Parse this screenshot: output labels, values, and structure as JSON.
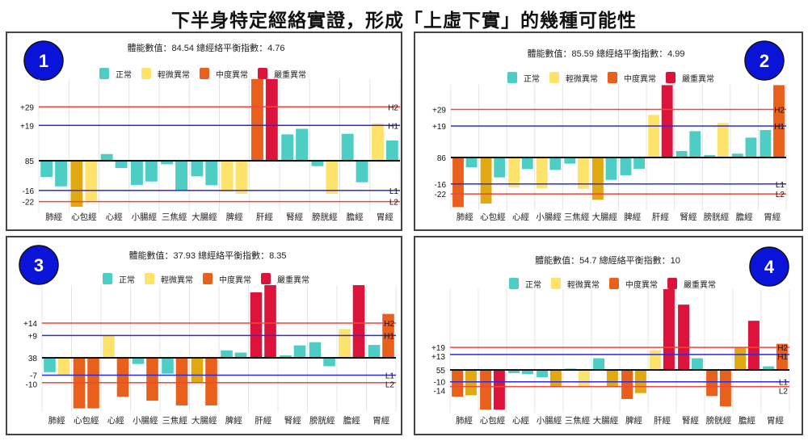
{
  "title": "下半身特定經絡實證，形成「上虛下實」的幾種可能性",
  "legend": [
    {
      "key": "normal",
      "label": "正常"
    },
    {
      "key": "mild",
      "label": "輕微異常"
    },
    {
      "key": "moderate",
      "label": "中度異常"
    },
    {
      "key": "severe",
      "label": "嚴重異常"
    }
  ],
  "colors": {
    "normal": "#4ecdc4",
    "mild": "#fde36b",
    "mild2": "#e0a912",
    "moderate": "#e8601c",
    "severe": "#dc143c",
    "badge": "#0a14d8",
    "high2": "#f0463c",
    "high1": "#2b2bd8",
    "baseline": "#111111"
  },
  "chart_data": [
    {
      "type": "bar",
      "badge": "1",
      "info": "體能數值：84.54 總經絡平衡指數：4.76",
      "baseline_label": "85",
      "ylim": [
        -26,
        44
      ],
      "lines": [
        {
          "label": "+29",
          "tag": "H2",
          "value": 29,
          "kind": "high2"
        },
        {
          "label": "+19",
          "tag": "H1",
          "value": 19,
          "kind": "high1"
        },
        {
          "label": "-16",
          "tag": "L1",
          "value": -16,
          "kind": "high1"
        },
        {
          "label": "-22",
          "tag": "L2",
          "value": -22,
          "kind": "high2"
        }
      ],
      "categories": [
        "肺經",
        "心包經",
        "心經",
        "小腸經",
        "三焦經",
        "大腸經",
        "脾經",
        "肝經",
        "腎經",
        "膀胱經",
        "膽經",
        "胃經"
      ],
      "values": [
        [
          -8.7,
          -13.8
        ],
        [
          -24.8,
          -21.6
        ],
        [
          3.6,
          -3.9
        ],
        [
          -13,
          -11.2
        ],
        [
          -1.9,
          -15.8
        ],
        [
          -8.4,
          -13.2
        ],
        [
          -16.8,
          -17.8
        ],
        [
          44,
          44
        ],
        [
          14.2,
          17.2
        ],
        [
          -2.9,
          -17.8
        ],
        [
          14.5,
          -11.6
        ],
        [
          20.1,
          10.9
        ]
      ],
      "status": [
        [
          "normal",
          "normal"
        ],
        [
          "mild2",
          "mild"
        ],
        [
          "normal",
          "normal"
        ],
        [
          "normal",
          "normal"
        ],
        [
          "normal",
          "normal"
        ],
        [
          "normal",
          "normal"
        ],
        [
          "mild",
          "mild"
        ],
        [
          "moderate",
          "severe"
        ],
        [
          "normal",
          "normal"
        ],
        [
          "normal",
          "mild"
        ],
        [
          "normal",
          "normal"
        ],
        [
          "mild",
          "normal"
        ]
      ]
    },
    {
      "type": "bar",
      "badge": "2",
      "info": "體能數值：85.59 總經絡平衡指數：4.99",
      "baseline_label": "86",
      "ylim": [
        -30,
        44
      ],
      "lines": [
        {
          "label": "+29",
          "tag": "H2",
          "value": 29,
          "kind": "high2"
        },
        {
          "label": "+19",
          "tag": "H1",
          "value": 19,
          "kind": "high1"
        },
        {
          "label": "-16",
          "tag": "L1",
          "value": -16,
          "kind": "high1"
        },
        {
          "label": "-22",
          "tag": "L2",
          "value": -22,
          "kind": "high2"
        }
      ],
      "categories": [
        "肺經",
        "心包經",
        "心經",
        "小腸經",
        "三焦經",
        "大腸經",
        "脾經",
        "肝經",
        "腎經",
        "膀胱經",
        "膽經",
        "胃經"
      ],
      "values": [
        [
          -30,
          -5.9
        ],
        [
          -27.8,
          -12
        ],
        [
          -18,
          -7
        ],
        [
          -18.5,
          -7.5
        ],
        [
          -3.7,
          -18.9
        ],
        [
          -25.5,
          -13.5
        ],
        [
          -10.7,
          -6.8
        ],
        [
          25.7,
          43.7
        ],
        [
          3.9,
          15.9
        ],
        [
          1.5,
          20.8
        ],
        [
          2.3,
          12
        ],
        [
          16.6,
          43.7
        ]
      ],
      "status": [
        [
          "moderate",
          "normal"
        ],
        [
          "mild2",
          "normal"
        ],
        [
          "mild",
          "normal"
        ],
        [
          "mild",
          "normal"
        ],
        [
          "normal",
          "mild"
        ],
        [
          "mild2",
          "normal"
        ],
        [
          "normal",
          "normal"
        ],
        [
          "mild",
          "severe"
        ],
        [
          "normal",
          "normal"
        ],
        [
          "normal",
          "mild"
        ],
        [
          "normal",
          "normal"
        ],
        [
          "normal",
          "moderate"
        ]
      ]
    },
    {
      "type": "bar",
      "badge": "3",
      "info": "體能數值：37.93 總經絡平衡指數：8.35",
      "baseline_label": "38",
      "ylim": [
        -20.4,
        29.3
      ],
      "lines": [
        {
          "label": "+14",
          "tag": "H2",
          "value": 14,
          "kind": "high2"
        },
        {
          "label": "+9",
          "tag": "H1",
          "value": 9,
          "kind": "high1"
        },
        {
          "label": "-7",
          "tag": "L1",
          "value": -7,
          "kind": "high1"
        },
        {
          "label": "-10",
          "tag": "L2",
          "value": -10,
          "kind": "high2"
        }
      ],
      "categories": [
        "肺經",
        "心包經",
        "心經",
        "小腸經",
        "三焦經",
        "大腸經",
        "脾經",
        "肝經",
        "腎經",
        "膀胱經",
        "膽經",
        "胃經"
      ],
      "values": [
        [
          -5.8,
          -7
        ],
        [
          -20.4,
          -20.4
        ],
        [
          9.1,
          -15.7
        ],
        [
          -2.5,
          -17.3
        ],
        [
          -6.4,
          -19.2
        ],
        [
          -10.1,
          -19.2
        ],
        [
          3,
          2.1
        ],
        [
          26.4,
          29.3
        ],
        [
          1,
          5
        ],
        [
          6.3,
          -3.4
        ],
        [
          11.6,
          29.3
        ],
        [
          5.2,
          17.7
        ]
      ],
      "status": [
        [
          "normal",
          "mild"
        ],
        [
          "moderate",
          "moderate"
        ],
        [
          "mild",
          "moderate"
        ],
        [
          "normal",
          "moderate"
        ],
        [
          "normal",
          "moderate"
        ],
        [
          "mild2",
          "moderate"
        ],
        [
          "normal",
          "normal"
        ],
        [
          "severe",
          "severe"
        ],
        [
          "normal",
          "normal"
        ],
        [
          "normal",
          "normal"
        ],
        [
          "mild",
          "severe"
        ],
        [
          "normal",
          "moderate"
        ]
      ]
    },
    {
      "type": "bar",
      "badge": "4",
      "info": "體能數值：54.7 總經絡平衡指數：10",
      "baseline_label": "55",
      "ylim": [
        -33.4,
        68
      ],
      "lines": [
        {
          "label": "+19",
          "tag": "H2",
          "value": 19,
          "kind": "high2"
        },
        {
          "label": "+13",
          "tag": "H1",
          "value": 13,
          "kind": "high1"
        },
        {
          "label": "-10",
          "tag": "L1",
          "value": -10,
          "kind": "high1"
        },
        {
          "label": "-14",
          "tag": "L2",
          "value": -14,
          "kind": "high2"
        }
      ],
      "categories": [
        "肺經",
        "心包經",
        "心經",
        "小腸經",
        "三焦經",
        "大腸經",
        "脾經",
        "肝經",
        "腎經",
        "膀胱經",
        "膽經",
        "胃經"
      ],
      "values": [
        [
          -22.5,
          -21.4
        ],
        [
          -33.4,
          -33.4
        ],
        [
          -2.7,
          -3.6
        ],
        [
          -6.1,
          -14.3
        ],
        [
          1.1,
          -14.3
        ],
        [
          9.8,
          -14.3
        ],
        [
          -24.5,
          -19.5
        ],
        [
          16.6,
          68
        ],
        [
          55,
          9.8
        ],
        [
          -22,
          -30.7
        ],
        [
          19,
          41.4
        ],
        [
          3,
          22
        ]
      ],
      "status": [
        [
          "moderate",
          "mild2"
        ],
        [
          "moderate",
          "severe"
        ],
        [
          "normal",
          "normal"
        ],
        [
          "normal",
          "mild2"
        ],
        [
          "normal",
          "mild"
        ],
        [
          "normal",
          "mild2"
        ],
        [
          "moderate",
          "mild2"
        ],
        [
          "mild",
          "severe"
        ],
        [
          "severe",
          "normal"
        ],
        [
          "moderate",
          "moderate"
        ],
        [
          "mild2",
          "severe"
        ],
        [
          "normal",
          "moderate"
        ]
      ]
    }
  ]
}
